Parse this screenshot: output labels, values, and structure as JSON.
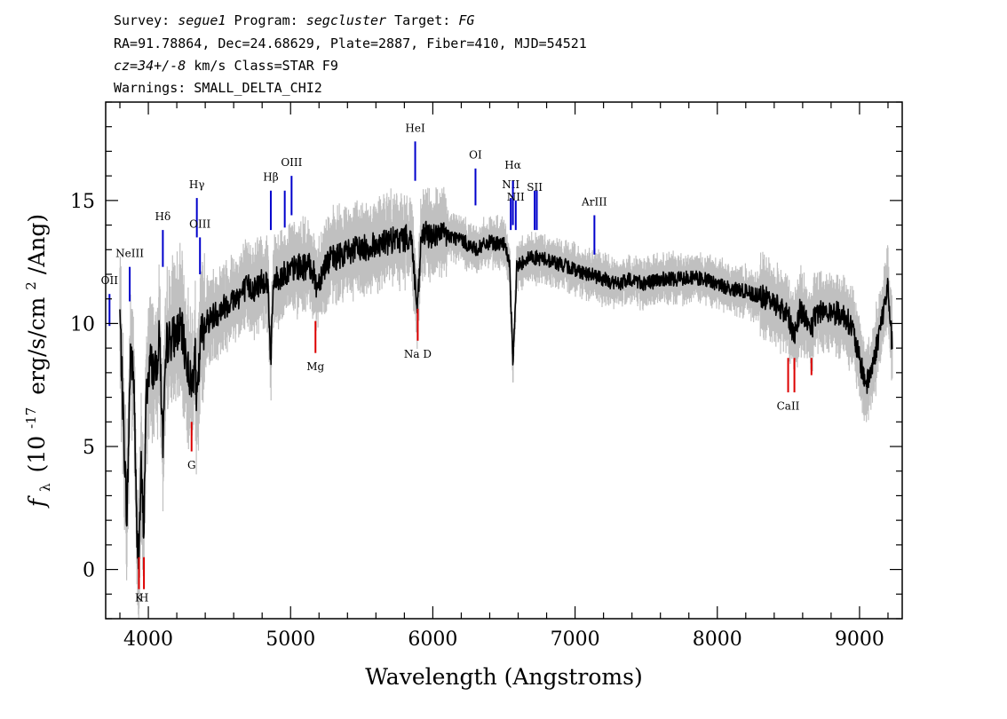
{
  "header": {
    "line1": {
      "survey_label": "Survey:",
      "survey": "segue1",
      "program_label": "Program:",
      "program": "segcluster",
      "target_label": "Target:",
      "target": "FG"
    },
    "line2": "RA=91.78864, Dec=24.68629, Plate=2887, Fiber=410, MJD=54521",
    "line3": {
      "cz": "cz=34+/-8",
      "rest": "km/s Class=STAR F9"
    },
    "line4": "Warnings: SMALL_DELTA_CHI2"
  },
  "chart_data": {
    "type": "line",
    "title": "",
    "xlabel": "Wavelength (Angstroms)",
    "ylabel": {
      "symbol": "f",
      "subscript": "λ",
      "open": "(10",
      "exponent": "-17",
      "units": "erg/s/cm",
      "units_exp": "2",
      "tail": "/Ang)"
    },
    "xlim": [
      3700,
      9300
    ],
    "ylim": [
      -2,
      19
    ],
    "x_ticks": [
      4000,
      5000,
      6000,
      7000,
      8000,
      9000
    ],
    "y_ticks": [
      0,
      5,
      10,
      15
    ],
    "x_minor_step": 200,
    "y_minor_step": 1,
    "grid": false,
    "legend": "none",
    "colors": {
      "flux": "#000000",
      "error_band": "#c0c0c0",
      "emission": "#0000cc",
      "absorption": "#dd0000"
    },
    "flux_anchors": [
      [
        3800,
        10.4
      ],
      [
        3825,
        6.0
      ],
      [
        3850,
        2.0
      ],
      [
        3875,
        9.0
      ],
      [
        3900,
        7.5
      ],
      [
        3920,
        1.0
      ],
      [
        3935,
        0.9
      ],
      [
        3950,
        4.0
      ],
      [
        3968,
        1.5
      ],
      [
        3985,
        7.0
      ],
      [
        4010,
        8.5
      ],
      [
        4050,
        8.0
      ],
      [
        4080,
        9.5
      ],
      [
        4101,
        5.0
      ],
      [
        4130,
        9.2
      ],
      [
        4180,
        9.5
      ],
      [
        4230,
        9.8
      ],
      [
        4270,
        8.5
      ],
      [
        4300,
        7.5
      ],
      [
        4330,
        8.5
      ],
      [
        4340,
        6.5
      ],
      [
        4370,
        9.5
      ],
      [
        4400,
        10.0
      ],
      [
        4450,
        10.3
      ],
      [
        4500,
        10.5
      ],
      [
        4550,
        10.8
      ],
      [
        4600,
        11.0
      ],
      [
        4650,
        11.2
      ],
      [
        4700,
        11.5
      ],
      [
        4750,
        11.4
      ],
      [
        4800,
        11.8
      ],
      [
        4840,
        11.7
      ],
      [
        4861,
        8.5
      ],
      [
        4880,
        11.7
      ],
      [
        4950,
        12.0
      ],
      [
        5050,
        12.3
      ],
      [
        5150,
        12.3
      ],
      [
        5183,
        11.5
      ],
      [
        5250,
        12.5
      ],
      [
        5350,
        12.8
      ],
      [
        5450,
        13.0
      ],
      [
        5550,
        13.1
      ],
      [
        5650,
        13.3
      ],
      [
        5750,
        13.4
      ],
      [
        5850,
        13.5
      ],
      [
        5890,
        10.5
      ],
      [
        5896,
        10.8
      ],
      [
        5920,
        13.6
      ],
      [
        6000,
        13.6
      ],
      [
        6100,
        13.6
      ],
      [
        6200,
        13.4
      ],
      [
        6300,
        13.0
      ],
      [
        6400,
        13.3
      ],
      [
        6500,
        13.2
      ],
      [
        6540,
        12.5
      ],
      [
        6563,
        8.2
      ],
      [
        6590,
        12.3
      ],
      [
        6650,
        12.6
      ],
      [
        6700,
        12.7
      ],
      [
        6800,
        12.6
      ],
      [
        6900,
        12.4
      ],
      [
        7000,
        12.2
      ],
      [
        7100,
        12.0
      ],
      [
        7200,
        11.8
      ],
      [
        7300,
        11.6
      ],
      [
        7400,
        11.8
      ],
      [
        7500,
        11.6
      ],
      [
        7600,
        11.8
      ],
      [
        7700,
        11.8
      ],
      [
        7800,
        11.9
      ],
      [
        7900,
        11.8
      ],
      [
        8000,
        11.6
      ],
      [
        8100,
        11.4
      ],
      [
        8200,
        11.3
      ],
      [
        8300,
        11.1
      ],
      [
        8400,
        10.9
      ],
      [
        8498,
        10.3
      ],
      [
        8542,
        9.5
      ],
      [
        8580,
        10.6
      ],
      [
        8662,
        9.8
      ],
      [
        8700,
        10.5
      ],
      [
        8800,
        10.5
      ],
      [
        8900,
        10.3
      ],
      [
        8950,
        9.8
      ],
      [
        9000,
        8.5
      ],
      [
        9050,
        7.5
      ],
      [
        9100,
        8.5
      ],
      [
        9150,
        10.0
      ],
      [
        9200,
        11.5
      ],
      [
        9230,
        9.0
      ]
    ],
    "lines": [
      {
        "label": "OII",
        "x": 3727,
        "y0": 9.9,
        "y1": 11.2,
        "kind": "emission",
        "label_y": 11.6
      },
      {
        "label": "NeIII",
        "x": 3869,
        "y0": 10.9,
        "y1": 12.3,
        "kind": "emission",
        "label_y": 12.7
      },
      {
        "label": "Hδ",
        "x": 4102,
        "y0": 12.3,
        "y1": 13.8,
        "kind": "emission",
        "label_y": 14.2
      },
      {
        "label": "Hγ",
        "x": 4341,
        "y0": 13.5,
        "y1": 15.1,
        "kind": "emission",
        "label_y": 15.5
      },
      {
        "label": "OIII",
        "x": 4363,
        "y0": 12.0,
        "y1": 13.5,
        "kind": "emission",
        "label_y": 13.9
      },
      {
        "label": "Hβ",
        "x": 4861,
        "y0": 13.8,
        "y1": 15.4,
        "kind": "emission",
        "label_y": 15.8
      },
      {
        "label": "OIII",
        "x": 4959,
        "y0": 13.9,
        "y1": 15.4,
        "kind": "emission",
        "label_y": null
      },
      {
        "label": "OIII",
        "x": 5007,
        "y0": 14.4,
        "y1": 16.0,
        "kind": "emission",
        "label_y": 16.4
      },
      {
        "label": "HeI",
        "x": 5876,
        "y0": 15.8,
        "y1": 17.4,
        "kind": "emission",
        "label_y": 17.8
      },
      {
        "label": "OI",
        "x": 6300,
        "y0": 14.8,
        "y1": 16.3,
        "kind": "emission",
        "label_y": 16.7
      },
      {
        "label": "NII",
        "x": 6548,
        "y0": 13.8,
        "y1": 15.1,
        "kind": "emission",
        "label_y": 15.5
      },
      {
        "label": "Hα",
        "x": 6563,
        "y0": 14.0,
        "y1": 15.8,
        "kind": "emission",
        "label_y": 16.3
      },
      {
        "label": "NII",
        "x": 6583,
        "y0": 13.8,
        "y1": 15.0,
        "kind": "emission",
        "label_y": 15.0
      },
      {
        "label": "SII",
        "x": 6716,
        "y0": 13.8,
        "y1": 15.4,
        "kind": "emission",
        "label_y": 15.4
      },
      {
        "label": "SII",
        "x": 6731,
        "y0": 13.8,
        "y1": 15.4,
        "kind": "emission",
        "label_y": null
      },
      {
        "label": "ArIII",
        "x": 7136,
        "y0": 12.8,
        "y1": 14.4,
        "kind": "emission",
        "label_y": 14.8
      },
      {
        "label": "K",
        "x": 3934,
        "y0": -0.8,
        "y1": 0.5,
        "kind": "absorption",
        "label_y": -1.3
      },
      {
        "label": "H",
        "x": 3969,
        "y0": -0.8,
        "y1": 0.5,
        "kind": "absorption",
        "label_y": -1.3
      },
      {
        "label": "G",
        "x": 4304,
        "y0": 4.8,
        "y1": 6.0,
        "kind": "absorption",
        "label_y": 4.1
      },
      {
        "label": "Mg",
        "x": 5175,
        "y0": 8.8,
        "y1": 10.1,
        "kind": "absorption",
        "label_y": 8.1
      },
      {
        "label": "Na D",
        "x": 5894,
        "y0": 9.3,
        "y1": 10.6,
        "kind": "absorption",
        "label_y": 8.6
      },
      {
        "label": "CaII",
        "x": 8498,
        "y0": 7.2,
        "y1": 8.6,
        "kind": "absorption",
        "label_y": 6.5
      },
      {
        "label": "CaII",
        "x": 8542,
        "y0": 7.2,
        "y1": 8.6,
        "kind": "absorption",
        "label_y": null
      },
      {
        "label": "CaII",
        "x": 8662,
        "y0": 7.9,
        "y1": 8.6,
        "kind": "absorption",
        "label_y": null
      }
    ]
  }
}
